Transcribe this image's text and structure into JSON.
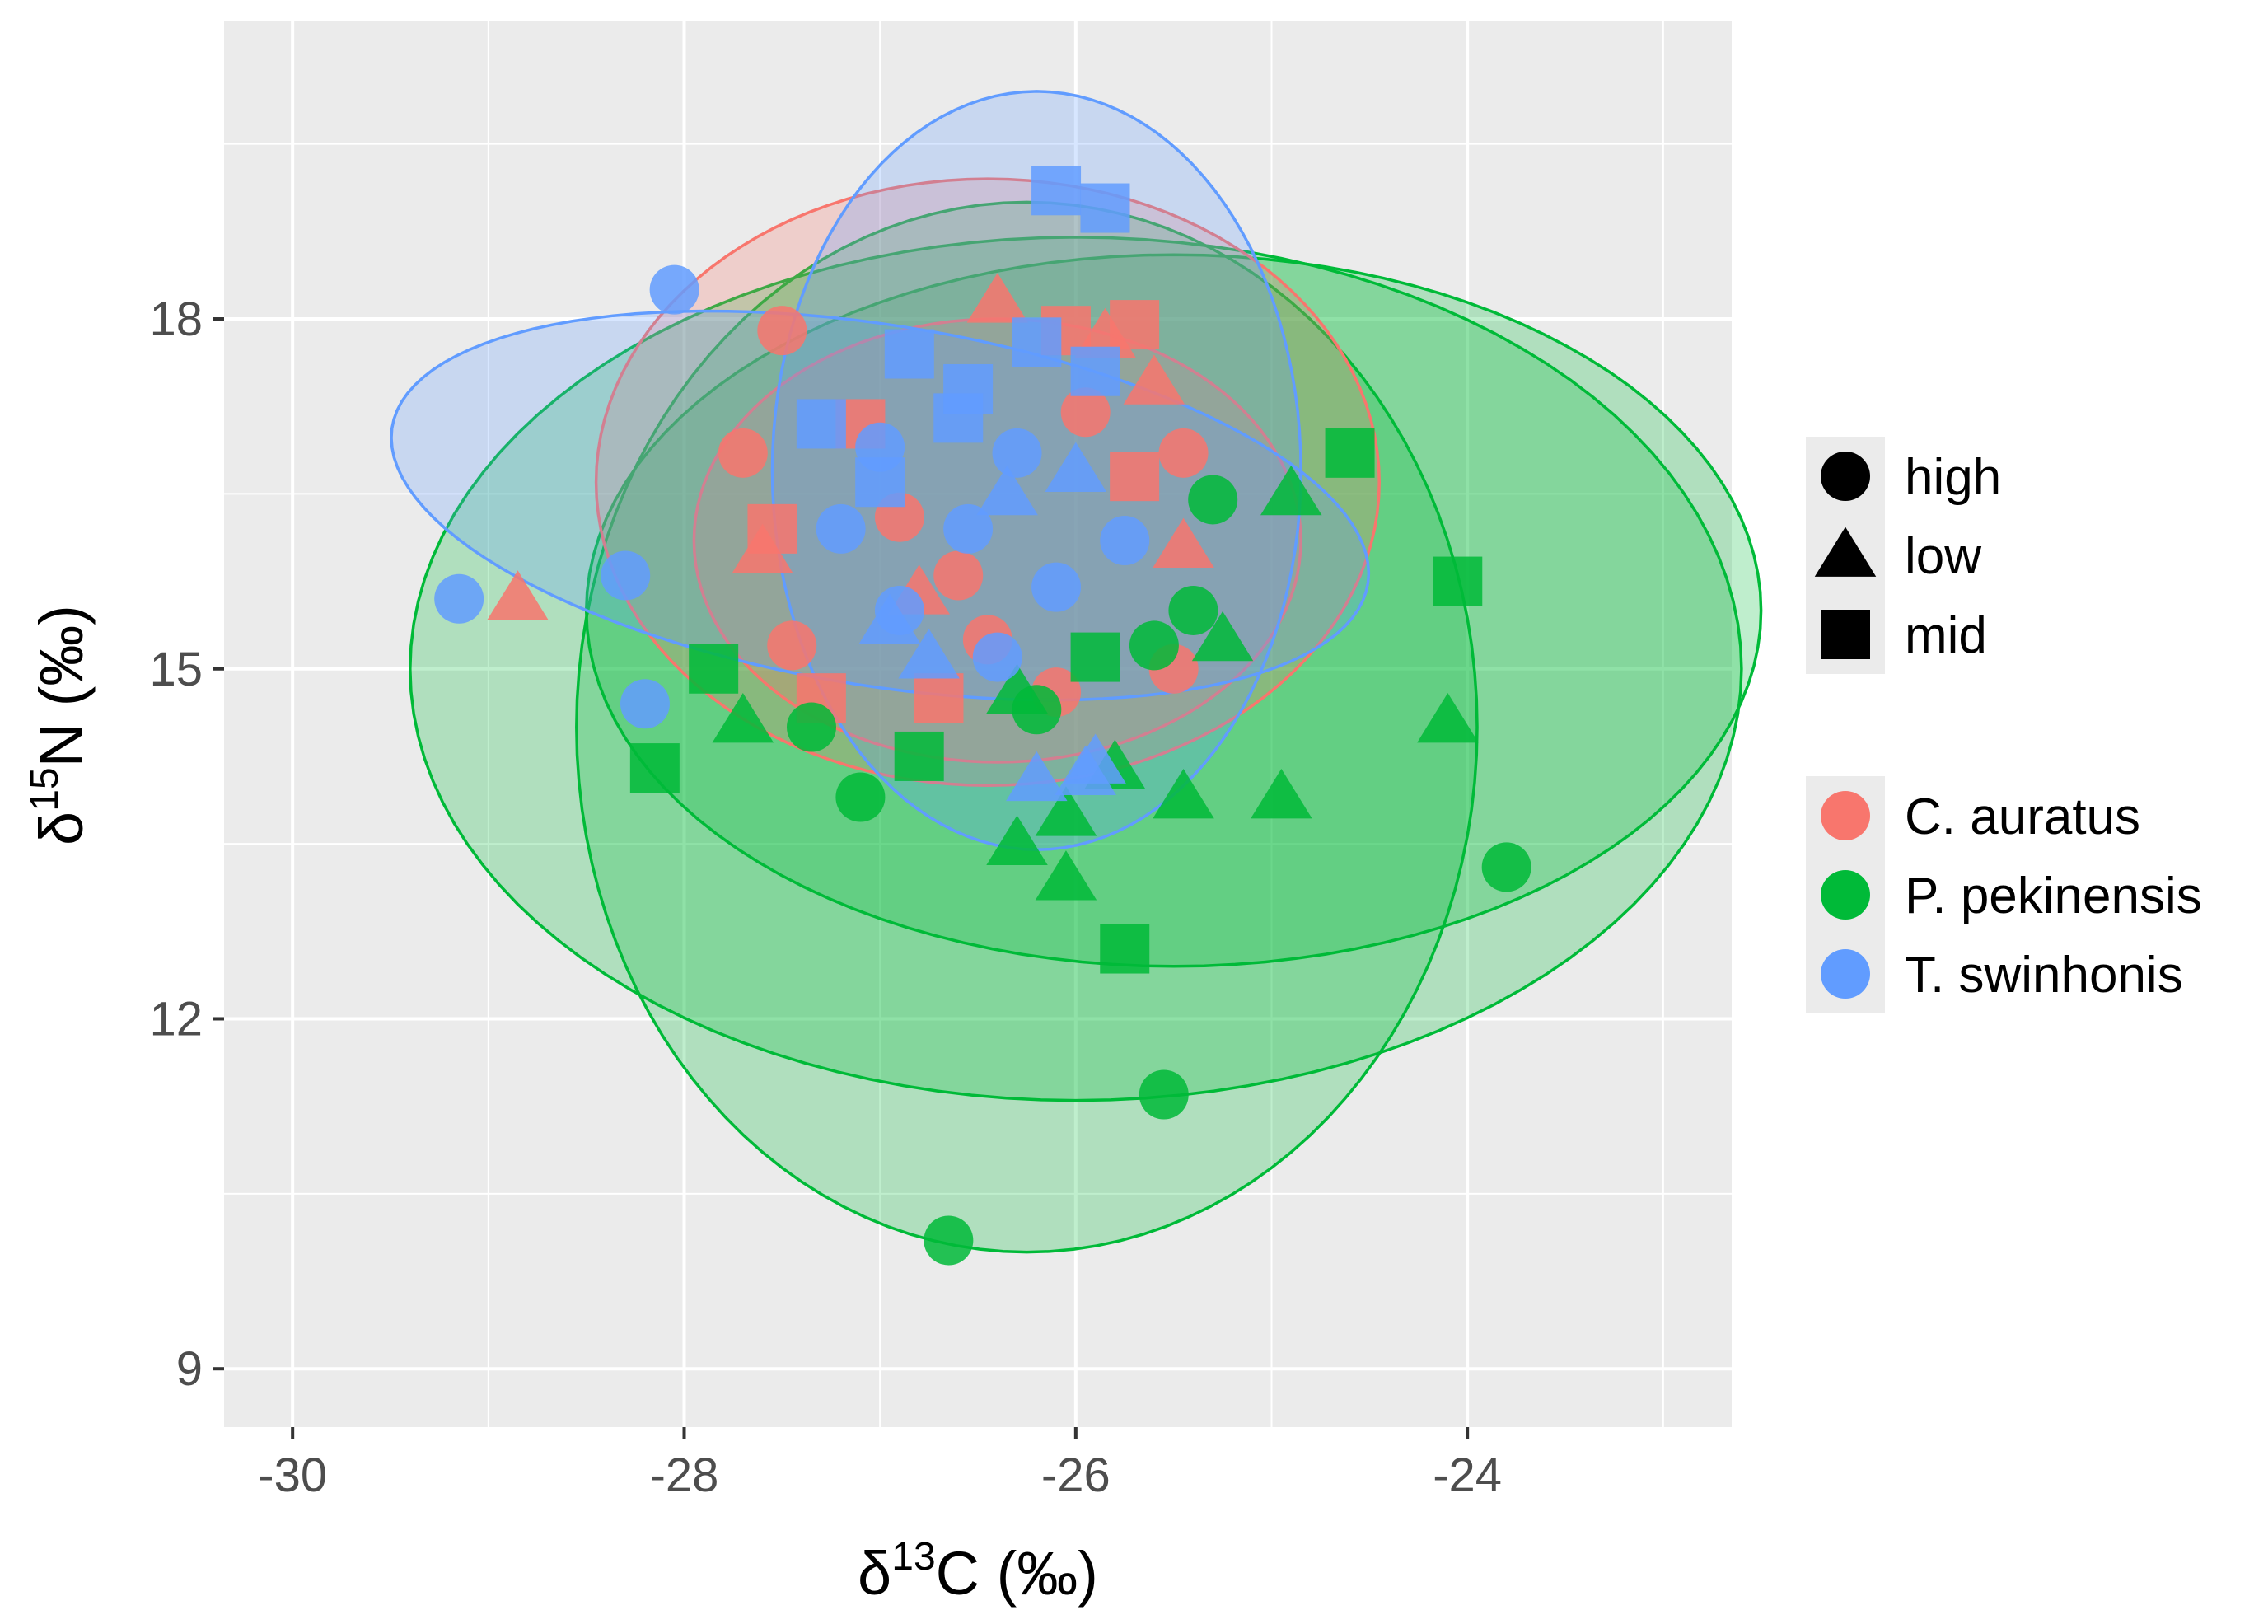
{
  "chart_data": {
    "type": "scatter",
    "title": "",
    "xlabel": {
      "prefix": "δ",
      "sup": "13",
      "rest": "C (‰)"
    },
    "ylabel": {
      "prefix": "δ",
      "sup": "15",
      "rest": "N (‰)"
    },
    "xlim": [
      -30.35,
      -22.65
    ],
    "ylim": [
      8.5,
      20.55
    ],
    "x_ticks": [
      -30,
      -28,
      -26,
      -24
    ],
    "x_tick_labels": [
      "-30",
      "-28",
      "-26",
      "-24"
    ],
    "y_ticks": [
      9,
      12,
      15,
      18
    ],
    "y_tick_labels": [
      "9",
      "12",
      "15",
      "18"
    ],
    "grid": true,
    "panel_background": "#ebebeb",
    "legend_position": "right",
    "shape_legend": [
      {
        "key": "high",
        "shape": "circle",
        "label": "high"
      },
      {
        "key": "low",
        "shape": "triangle",
        "label": "low"
      },
      {
        "key": "mid",
        "shape": "square",
        "label": "mid"
      }
    ],
    "color_legend": [
      {
        "key": "C. auratus",
        "color": "#f8766d",
        "label": "C. auratus"
      },
      {
        "key": "P. pekinensis",
        "color": "#00ba38",
        "label": "P. pekinensis"
      },
      {
        "key": "T. swinhonis",
        "color": "#619cff",
        "label": "T. swinhonis"
      }
    ],
    "ellipses": [
      {
        "species": "P. pekinensis",
        "cx": -26.25,
        "cy": 14.5,
        "rx": 2.3,
        "ry": 4.5,
        "angle": 0
      },
      {
        "species": "P. pekinensis",
        "cx": -26.0,
        "cy": 15.0,
        "rx": 3.4,
        "ry": 3.7,
        "angle": 0
      },
      {
        "species": "P. pekinensis",
        "cx": -25.5,
        "cy": 15.5,
        "rx": 3.0,
        "ry": 3.05,
        "angle": 0
      },
      {
        "species": "C. auratus",
        "cx": -26.45,
        "cy": 16.6,
        "rx": 2.0,
        "ry": 2.6,
        "angle": 0
      },
      {
        "species": "C. auratus",
        "cx": -26.4,
        "cy": 16.1,
        "rx": 1.55,
        "ry": 1.9,
        "angle": 0
      },
      {
        "species": "T. swinhonis",
        "cx": -27.0,
        "cy": 16.4,
        "rx": 2.6,
        "ry": 1.5,
        "angle": -0.35
      },
      {
        "species": "T. swinhonis",
        "cx": -26.2,
        "cy": 16.7,
        "rx": 1.35,
        "ry": 3.25,
        "angle": 0
      }
    ],
    "series": [
      {
        "name": "C. auratus",
        "color": "#f8766d",
        "points": [
          {
            "x": -27.5,
            "y": 17.9,
            "shape": "high"
          },
          {
            "x": -27.7,
            "y": 16.85,
            "shape": "high"
          },
          {
            "x": -27.45,
            "y": 15.2,
            "shape": "high"
          },
          {
            "x": -26.9,
            "y": 16.3,
            "shape": "high"
          },
          {
            "x": -26.6,
            "y": 15.8,
            "shape": "high"
          },
          {
            "x": -25.95,
            "y": 17.2,
            "shape": "high"
          },
          {
            "x": -25.45,
            "y": 16.85,
            "shape": "high"
          },
          {
            "x": -25.5,
            "y": 15.0,
            "shape": "high"
          },
          {
            "x": -26.45,
            "y": 15.25,
            "shape": "high"
          },
          {
            "x": -26.1,
            "y": 14.8,
            "shape": "high"
          },
          {
            "x": -28.85,
            "y": 15.6,
            "shape": "low"
          },
          {
            "x": -26.4,
            "y": 18.15,
            "shape": "low"
          },
          {
            "x": -25.85,
            "y": 17.85,
            "shape": "low"
          },
          {
            "x": -25.6,
            "y": 17.45,
            "shape": "low"
          },
          {
            "x": -25.45,
            "y": 16.05,
            "shape": "low"
          },
          {
            "x": -27.6,
            "y": 16.0,
            "shape": "low"
          },
          {
            "x": -26.8,
            "y": 15.65,
            "shape": "low"
          },
          {
            "x": -27.55,
            "y": 16.2,
            "shape": "mid"
          },
          {
            "x": -27.1,
            "y": 17.1,
            "shape": "mid"
          },
          {
            "x": -26.05,
            "y": 17.9,
            "shape": "mid"
          },
          {
            "x": -25.7,
            "y": 17.95,
            "shape": "mid"
          },
          {
            "x": -25.7,
            "y": 16.65,
            "shape": "mid"
          },
          {
            "x": -27.3,
            "y": 14.75,
            "shape": "mid"
          },
          {
            "x": -26.7,
            "y": 14.75,
            "shape": "mid"
          }
        ]
      },
      {
        "name": "P. pekinensis",
        "color": "#00ba38",
        "points": [
          {
            "x": -26.65,
            "y": 10.1,
            "shape": "high"
          },
          {
            "x": -25.55,
            "y": 11.35,
            "shape": "high"
          },
          {
            "x": -23.8,
            "y": 13.3,
            "shape": "high"
          },
          {
            "x": -27.1,
            "y": 13.9,
            "shape": "high"
          },
          {
            "x": -27.35,
            "y": 14.5,
            "shape": "high"
          },
          {
            "x": -25.3,
            "y": 16.45,
            "shape": "high"
          },
          {
            "x": -25.4,
            "y": 15.5,
            "shape": "high"
          },
          {
            "x": -26.2,
            "y": 14.65,
            "shape": "high"
          },
          {
            "x": -25.6,
            "y": 15.2,
            "shape": "high"
          },
          {
            "x": -24.9,
            "y": 16.5,
            "shape": "low"
          },
          {
            "x": -24.95,
            "y": 13.9,
            "shape": "low"
          },
          {
            "x": -24.1,
            "y": 14.55,
            "shape": "low"
          },
          {
            "x": -25.45,
            "y": 13.9,
            "shape": "low"
          },
          {
            "x": -26.05,
            "y": 13.2,
            "shape": "low"
          },
          {
            "x": -26.3,
            "y": 13.5,
            "shape": "low"
          },
          {
            "x": -26.05,
            "y": 13.75,
            "shape": "low"
          },
          {
            "x": -27.7,
            "y": 14.55,
            "shape": "low"
          },
          {
            "x": -26.3,
            "y": 14.8,
            "shape": "low"
          },
          {
            "x": -25.25,
            "y": 15.25,
            "shape": "low"
          },
          {
            "x": -25.8,
            "y": 14.15,
            "shape": "low"
          },
          {
            "x": -24.6,
            "y": 16.85,
            "shape": "mid"
          },
          {
            "x": -24.05,
            "y": 15.75,
            "shape": "mid"
          },
          {
            "x": -25.75,
            "y": 12.6,
            "shape": "mid"
          },
          {
            "x": -28.15,
            "y": 14.15,
            "shape": "mid"
          },
          {
            "x": -27.85,
            "y": 15.0,
            "shape": "mid"
          },
          {
            "x": -26.8,
            "y": 14.25,
            "shape": "mid"
          },
          {
            "x": -25.9,
            "y": 15.1,
            "shape": "mid"
          }
        ]
      },
      {
        "name": "T. swinhonis",
        "color": "#619cff",
        "points": [
          {
            "x": -28.05,
            "y": 18.25,
            "shape": "high"
          },
          {
            "x": -29.15,
            "y": 15.6,
            "shape": "high"
          },
          {
            "x": -28.3,
            "y": 15.8,
            "shape": "high"
          },
          {
            "x": -28.2,
            "y": 14.7,
            "shape": "high"
          },
          {
            "x": -27.0,
            "y": 16.9,
            "shape": "high"
          },
          {
            "x": -26.9,
            "y": 15.5,
            "shape": "high"
          },
          {
            "x": -26.55,
            "y": 16.2,
            "shape": "high"
          },
          {
            "x": -26.3,
            "y": 16.85,
            "shape": "high"
          },
          {
            "x": -26.1,
            "y": 15.7,
            "shape": "high"
          },
          {
            "x": -25.75,
            "y": 16.1,
            "shape": "high"
          },
          {
            "x": -27.2,
            "y": 16.2,
            "shape": "high"
          },
          {
            "x": -26.4,
            "y": 15.1,
            "shape": "high"
          },
          {
            "x": -26.2,
            "y": 14.05,
            "shape": "low"
          },
          {
            "x": -25.9,
            "y": 14.2,
            "shape": "low"
          },
          {
            "x": -26.75,
            "y": 15.1,
            "shape": "low"
          },
          {
            "x": -26.35,
            "y": 16.5,
            "shape": "low"
          },
          {
            "x": -26.0,
            "y": 16.7,
            "shape": "low"
          },
          {
            "x": -26.95,
            "y": 15.4,
            "shape": "low"
          },
          {
            "x": -25.95,
            "y": 14.1,
            "shape": "low"
          },
          {
            "x": -26.1,
            "y": 19.1,
            "shape": "mid"
          },
          {
            "x": -25.85,
            "y": 18.95,
            "shape": "mid"
          },
          {
            "x": -25.9,
            "y": 17.55,
            "shape": "mid"
          },
          {
            "x": -26.55,
            "y": 17.4,
            "shape": "mid"
          },
          {
            "x": -26.85,
            "y": 17.7,
            "shape": "mid"
          },
          {
            "x": -27.3,
            "y": 17.1,
            "shape": "mid"
          },
          {
            "x": -26.2,
            "y": 17.8,
            "shape": "mid"
          },
          {
            "x": -27.0,
            "y": 16.6,
            "shape": "mid"
          },
          {
            "x": -26.6,
            "y": 17.15,
            "shape": "mid"
          }
        ]
      }
    ]
  }
}
